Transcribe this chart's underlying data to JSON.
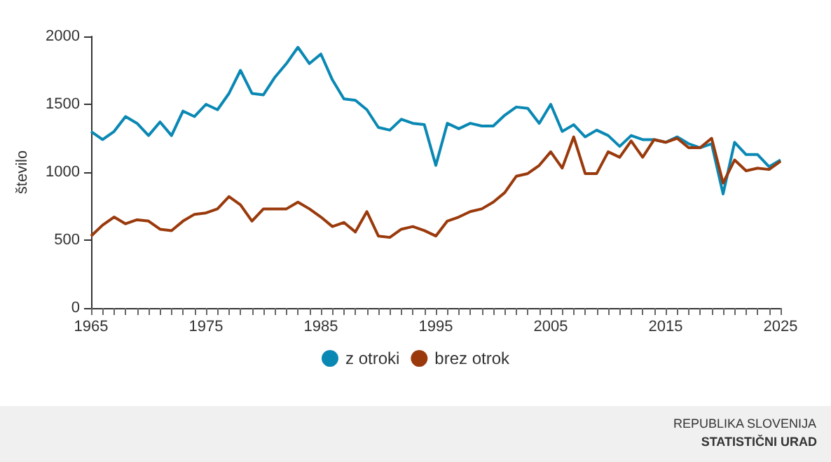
{
  "chart_data": {
    "type": "line",
    "ylabel": "število",
    "x": [
      1965,
      1966,
      1967,
      1968,
      1969,
      1970,
      1971,
      1972,
      1973,
      1974,
      1975,
      1976,
      1977,
      1978,
      1979,
      1980,
      1981,
      1982,
      1983,
      1984,
      1985,
      1986,
      1987,
      1988,
      1989,
      1990,
      1991,
      1992,
      1993,
      1994,
      1995,
      1996,
      1997,
      1998,
      1999,
      2000,
      2001,
      2002,
      2003,
      2004,
      2005,
      2006,
      2007,
      2008,
      2009,
      2010,
      2011,
      2012,
      2013,
      2014,
      2015,
      2016,
      2017,
      2018,
      2019,
      2020,
      2021,
      2022,
      2023,
      2024,
      2025
    ],
    "series": [
      {
        "name": "z otroki",
        "color": "#0a88b4",
        "values": [
          1300,
          1240,
          1300,
          1410,
          1360,
          1270,
          1370,
          1270,
          1450,
          1410,
          1500,
          1460,
          1580,
          1750,
          1580,
          1570,
          1700,
          1800,
          1920,
          1800,
          1870,
          1680,
          1540,
          1530,
          1460,
          1330,
          1310,
          1390,
          1360,
          1350,
          1050,
          1360,
          1320,
          1360,
          1340,
          1340,
          1420,
          1480,
          1470,
          1360,
          1500,
          1300,
          1350,
          1260,
          1310,
          1270,
          1190,
          1270,
          1240,
          1240,
          1220,
          1260,
          1210,
          1180,
          1210,
          840,
          1220,
          1130,
          1130,
          1040,
          1090
        ]
      },
      {
        "name": "brez otrok",
        "color": "#9a3a0c",
        "values": [
          530,
          610,
          670,
          620,
          650,
          640,
          580,
          570,
          640,
          690,
          700,
          730,
          820,
          760,
          640,
          730,
          730,
          730,
          780,
          730,
          670,
          600,
          630,
          560,
          710,
          530,
          520,
          580,
          600,
          570,
          530,
          640,
          670,
          710,
          730,
          780,
          850,
          970,
          990,
          1050,
          1150,
          1030,
          1260,
          990,
          990,
          1150,
          1110,
          1230,
          1110,
          1240,
          1220,
          1250,
          1180,
          1180,
          1250,
          920,
          1090,
          1010,
          1030,
          1020,
          1080
        ]
      }
    ],
    "xlim": [
      1965,
      2025
    ],
    "xticks": [
      1965,
      1975,
      1985,
      1995,
      2005,
      2015,
      2025
    ],
    "ylim": [
      0,
      2000
    ],
    "yticks": [
      0,
      500,
      1000,
      1500,
      2000
    ],
    "grid": false,
    "legend": "bottom",
    "marker": "none",
    "line_style": "solid",
    "annotations": [
      "REPUBLIKA SLOVENIJA",
      "STATISTIČNI URAD"
    ]
  }
}
